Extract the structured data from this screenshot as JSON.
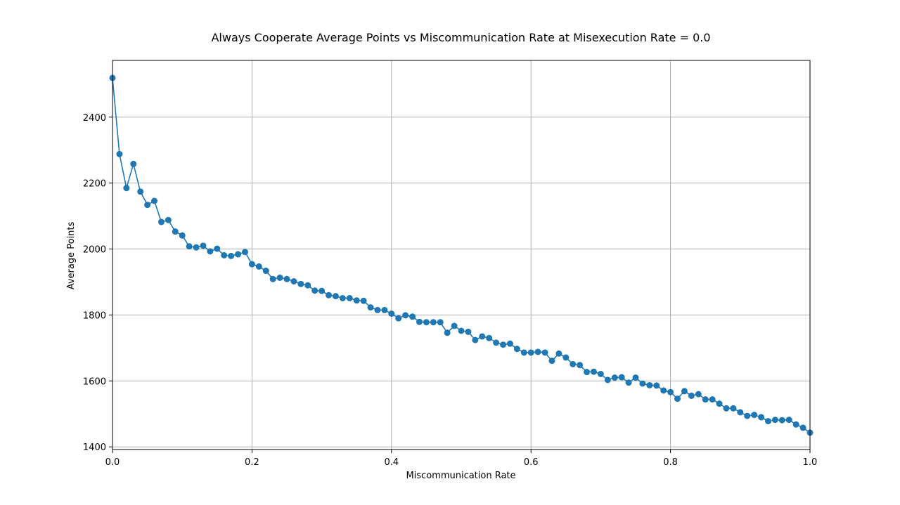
{
  "chart_data": {
    "type": "line",
    "title": "Always Cooperate Average Points vs Miscommunication Rate at Misexecution Rate = 0.0",
    "xlabel": "Miscommunication Rate",
    "ylabel": "Average Points",
    "xlim": [
      0,
      1
    ],
    "ylim": [
      1392,
      2572
    ],
    "xticks": [
      0,
      0.2,
      0.4,
      0.6,
      0.8,
      1
    ],
    "xtick_labels": [
      "0.0",
      "0.2",
      "0.4",
      "0.6",
      "0.8",
      "1.0"
    ],
    "yticks": [
      1400,
      1600,
      1800,
      2000,
      2200,
      2400
    ],
    "ytick_labels": [
      "1400",
      "1600",
      "1800",
      "2000",
      "2200",
      "2400"
    ],
    "grid": true,
    "marker": "circle",
    "series": [
      {
        "color": "#1f77b4",
        "x": [
          0.0,
          0.01,
          0.02,
          0.03,
          0.04,
          0.05,
          0.06,
          0.07,
          0.08,
          0.09,
          0.1,
          0.11,
          0.12,
          0.13,
          0.14,
          0.15,
          0.16,
          0.17,
          0.18,
          0.19,
          0.2,
          0.21,
          0.22,
          0.23,
          0.24,
          0.25,
          0.26,
          0.27,
          0.28,
          0.29,
          0.3,
          0.31,
          0.32,
          0.33,
          0.34,
          0.35,
          0.36,
          0.37,
          0.38,
          0.39,
          0.4,
          0.41,
          0.42,
          0.43,
          0.44,
          0.45,
          0.46,
          0.47,
          0.48,
          0.49,
          0.5,
          0.51,
          0.52,
          0.53,
          0.54,
          0.55,
          0.56,
          0.57,
          0.58,
          0.59,
          0.6,
          0.61,
          0.62,
          0.63,
          0.64,
          0.65,
          0.66,
          0.67,
          0.68,
          0.69,
          0.7,
          0.71,
          0.72,
          0.73,
          0.74,
          0.75,
          0.76,
          0.77,
          0.78,
          0.79,
          0.8,
          0.81,
          0.82,
          0.83,
          0.84,
          0.85,
          0.86,
          0.87,
          0.88,
          0.89,
          0.9,
          0.91,
          0.92,
          0.93,
          0.94,
          0.95,
          0.96,
          0.97,
          0.98,
          0.99,
          1.0
        ],
        "y": [
          2519,
          2288,
          2185,
          2258,
          2174,
          2134,
          2146,
          2082,
          2088,
          2053,
          2041,
          2008,
          2005,
          2010,
          1993,
          2001,
          1981,
          1979,
          1984,
          1991,
          1954,
          1947,
          1934,
          1909,
          1913,
          1909,
          1902,
          1894,
          1890,
          1874,
          1873,
          1860,
          1857,
          1851,
          1851,
          1844,
          1843,
          1823,
          1815,
          1815,
          1804,
          1790,
          1799,
          1795,
          1779,
          1778,
          1778,
          1778,
          1746,
          1767,
          1752,
          1749,
          1724,
          1735,
          1730,
          1716,
          1710,
          1713,
          1697,
          1686,
          1686,
          1688,
          1686,
          1661,
          1683,
          1671,
          1651,
          1648,
          1627,
          1628,
          1621,
          1603,
          1610,
          1611,
          1595,
          1610,
          1592,
          1587,
          1586,
          1571,
          1566,
          1546,
          1569,
          1555,
          1560,
          1544,
          1544,
          1531,
          1517,
          1517,
          1505,
          1494,
          1497,
          1490,
          1478,
          1482,
          1481,
          1482,
          1468,
          1458,
          1443
        ]
      }
    ]
  }
}
